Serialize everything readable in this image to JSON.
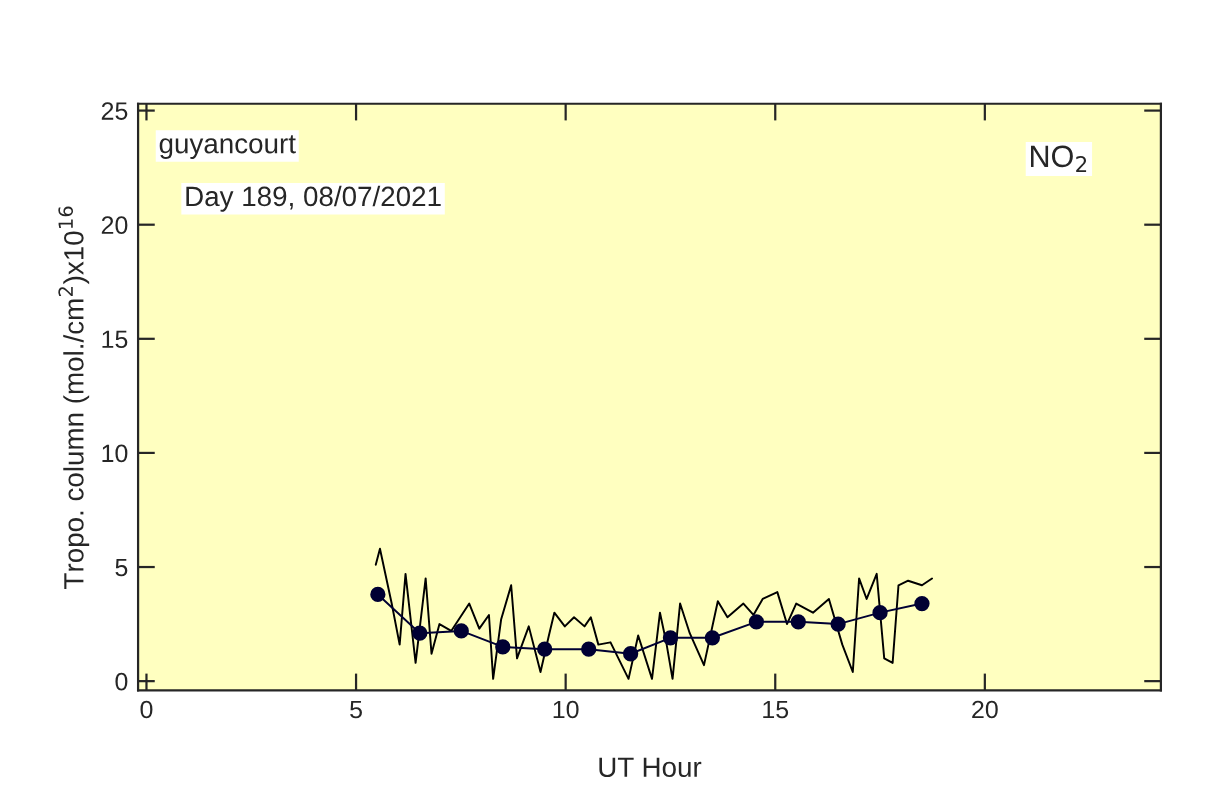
{
  "chart_data": {
    "type": "line",
    "xlabel": "UT Hour",
    "ylabel": "Tropo. column (mol./cm$^{2}$)x10$^{16}$",
    "annotations": [
      "guyancourt",
      "Day 189, 08/07/2021",
      "NO$_{2}$"
    ],
    "xlim": [
      -0.2,
      24.2
    ],
    "ylim": [
      -0.4,
      25.3
    ],
    "xticks": [
      0,
      5,
      10,
      15,
      20
    ],
    "yticks": [
      0,
      5,
      10,
      15,
      20,
      25
    ],
    "grid": false,
    "legend": false,
    "series": [
      {
        "color": "#000000",
        "marker": "none",
        "x": [
          5.47,
          5.57,
          5.85,
          6.04,
          6.18,
          6.42,
          6.66,
          6.8,
          6.99,
          7.27,
          7.7,
          7.94,
          8.17,
          8.27,
          8.46,
          8.7,
          8.84,
          9.12,
          9.4,
          9.6,
          9.73,
          9.98,
          10.2,
          10.45,
          10.6,
          10.78,
          11.07,
          11.5,
          11.73,
          12.06,
          12.25,
          12.4,
          12.55,
          12.73,
          12.96,
          13.3,
          13.63,
          13.86,
          14.24,
          14.48,
          14.7,
          15.05,
          15.28,
          15.5,
          15.9,
          16.28,
          16.6,
          16.85,
          17.0,
          17.18,
          17.42,
          17.6,
          17.8,
          17.94,
          18.17,
          18.5,
          18.74
        ],
        "values": [
          5.1,
          5.8,
          3.4,
          1.6,
          4.7,
          0.8,
          4.5,
          1.2,
          2.5,
          2.2,
          3.4,
          2.3,
          2.9,
          0.1,
          2.7,
          4.2,
          1.0,
          2.4,
          0.4,
          2.0,
          3.0,
          2.4,
          2.8,
          2.4,
          2.8,
          1.6,
          1.7,
          0.1,
          2.0,
          0.1,
          3.0,
          1.7,
          0.1,
          3.4,
          2.1,
          0.7,
          3.5,
          2.8,
          3.4,
          2.9,
          3.6,
          3.9,
          2.5,
          3.4,
          3.0,
          3.6,
          1.6,
          0.4,
          4.5,
          3.6,
          4.7,
          1.0,
          0.8,
          4.2,
          4.4,
          4.2,
          4.5
        ]
      },
      {
        "color": "#000033",
        "marker": "circle",
        "x": [
          5.52,
          6.52,
          7.51,
          8.5,
          9.5,
          10.55,
          11.55,
          12.5,
          13.5,
          14.55,
          15.55,
          16.5,
          17.5,
          18.5
        ],
        "values": [
          3.8,
          2.1,
          2.2,
          1.5,
          1.4,
          1.4,
          1.2,
          1.9,
          1.9,
          2.6,
          2.6,
          2.5,
          3.0,
          3.4
        ]
      }
    ]
  }
}
